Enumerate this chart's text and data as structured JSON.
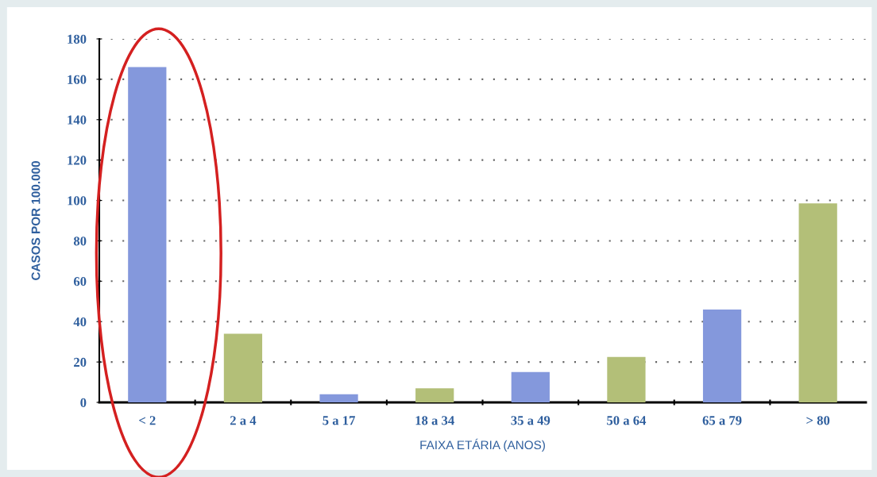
{
  "chart_data": {
    "type": "bar",
    "xlabel": "FAIXA ETÁRIA (ANOS)",
    "ylabel": "CASOS POR 100.000",
    "categories": [
      "< 2",
      "2 a 4",
      "5 a 17",
      "18 a 34",
      "35 a 49",
      "50 a 64",
      "65 a 79",
      "> 80"
    ],
    "values": [
      166,
      34,
      4,
      7,
      15,
      22.5,
      46,
      98.5
    ],
    "colors": [
      "#8498dc",
      "#b3bf78",
      "#8498dc",
      "#b3bf78",
      "#8498dc",
      "#b3bf78",
      "#8498dc",
      "#b3bf78"
    ],
    "ylim": [
      0,
      180
    ],
    "yticks": [
      0,
      20,
      40,
      60,
      80,
      100,
      120,
      140,
      160,
      180
    ],
    "grid": "y"
  }
}
